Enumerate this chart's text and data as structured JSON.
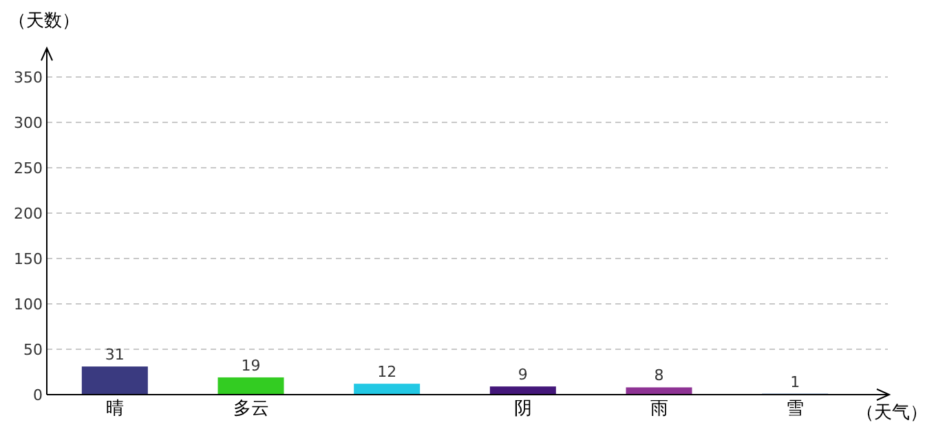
{
  "chart_data": {
    "type": "bar",
    "ylabel": "（天数）",
    "xlabel": "（天气）",
    "categories": [
      "晴",
      "多云",
      null,
      "阴",
      "雨",
      "雪"
    ],
    "values": [
      31,
      19,
      12,
      9,
      8,
      1
    ],
    "colors": [
      "#3a3a80",
      "#33cc22",
      "#22c8e4",
      "#44177a",
      "#8e3394",
      "#3366aa"
    ],
    "ylim": [
      0,
      350
    ],
    "yticks": [
      0,
      50,
      100,
      150,
      200,
      250,
      300,
      350
    ],
    "grid": "y",
    "data_labels": true
  }
}
